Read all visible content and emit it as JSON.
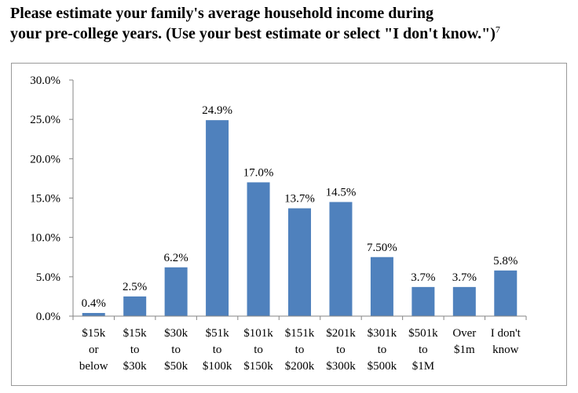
{
  "heading": {
    "line1": "Please estimate your family's average household income during",
    "line2": "your pre-college years. (Use your best estimate or select \"I don't know.\")",
    "footnote": "7"
  },
  "chart_data": {
    "type": "bar",
    "categories": [
      [
        "$15k",
        "or",
        "below"
      ],
      [
        "$15k",
        "to",
        "$30k"
      ],
      [
        "$30k",
        "to",
        "$50k"
      ],
      [
        "$51k",
        "to",
        "$100k"
      ],
      [
        "$101k",
        "to",
        "$150k"
      ],
      [
        "$151k",
        "to",
        "$200k"
      ],
      [
        "$201k",
        "to",
        "$300k"
      ],
      [
        "$301k",
        "to",
        "$500k"
      ],
      [
        "$501k",
        "to",
        "$1M"
      ],
      [
        "Over",
        "$1m"
      ],
      [
        "I don't",
        "know"
      ]
    ],
    "values": [
      0.4,
      2.5,
      6.2,
      24.9,
      17.0,
      13.7,
      14.5,
      7.5,
      3.7,
      3.7,
      5.8
    ],
    "data_labels": [
      "0.4%",
      "2.5%",
      "6.2%",
      "24.9%",
      "17.0%",
      "13.7%",
      "14.5%",
      "7.50%",
      "3.7%",
      "3.7%",
      "5.8%"
    ],
    "ylim": [
      0,
      30
    ],
    "yticks": [
      "0.0%",
      "5.0%",
      "10.0%",
      "15.0%",
      "20.0%",
      "25.0%",
      "30.0%"
    ],
    "bar_color": "#4f81bd",
    "grid": false,
    "legend": "none"
  }
}
